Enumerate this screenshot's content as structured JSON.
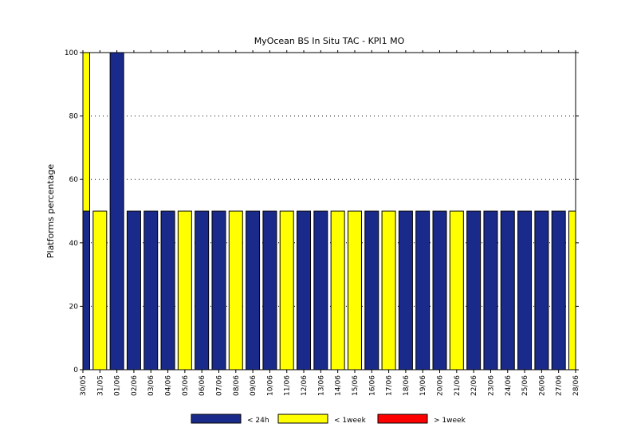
{
  "chart_data": {
    "type": "bar",
    "stacked": true,
    "title": "MyOcean  BS In Situ TAC - KPI1  MO",
    "xlabel": "",
    "ylabel": "Platforms percentage",
    "ylim": [
      0,
      100
    ],
    "yticks": [
      0,
      20,
      40,
      60,
      80,
      100
    ],
    "grid": "horizontal-dotted",
    "legend_position": "bottom",
    "categories": [
      "30/05",
      "31/05",
      "01/06",
      "02/06",
      "03/06",
      "04/06",
      "05/06",
      "06/06",
      "07/06",
      "08/06",
      "09/06",
      "10/06",
      "11/06",
      "12/06",
      "13/06",
      "14/06",
      "15/06",
      "16/06",
      "17/06",
      "18/06",
      "19/06",
      "20/06",
      "21/06",
      "22/06",
      "23/06",
      "24/06",
      "25/06",
      "26/06",
      "27/06",
      "28/06"
    ],
    "series": [
      {
        "name": "< 24h",
        "color": "#1a2a8a",
        "values": [
          50,
          0,
          100,
          50,
          50,
          50,
          0,
          50,
          50,
          0,
          50,
          50,
          0,
          50,
          50,
          0,
          0,
          50,
          0,
          50,
          50,
          50,
          0,
          50,
          50,
          50,
          50,
          50,
          50,
          0
        ]
      },
      {
        "name": "< 1week",
        "color": "#ffff00",
        "values": [
          50,
          50,
          0,
          0,
          0,
          0,
          50,
          0,
          0,
          50,
          0,
          0,
          50,
          0,
          0,
          50,
          50,
          0,
          50,
          0,
          0,
          0,
          50,
          0,
          0,
          0,
          0,
          0,
          0,
          50
        ]
      },
      {
        "name": "> 1week",
        "color": "#ff0000",
        "values": [
          0,
          0,
          0,
          0,
          0,
          0,
          0,
          0,
          0,
          0,
          0,
          0,
          0,
          0,
          0,
          0,
          0,
          0,
          0,
          0,
          0,
          0,
          0,
          0,
          0,
          0,
          0,
          0,
          0,
          0
        ]
      }
    ]
  }
}
